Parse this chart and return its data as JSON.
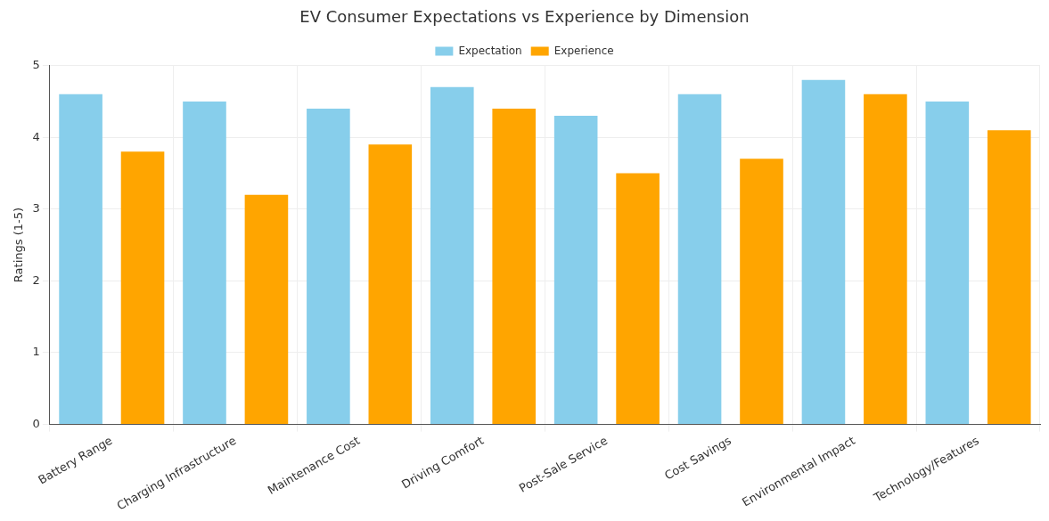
{
  "chart_data": {
    "type": "bar",
    "title": "EV Consumer Expectations vs Experience by Dimension",
    "ylabel": "Ratings (1-5)",
    "categories": [
      "Battery Range",
      "Charging Infrastructure",
      "Maintenance Cost",
      "Driving Comfort",
      "Post-Sale Service",
      "Cost Savings",
      "Environmental Impact",
      "Technology/Features"
    ],
    "series": [
      {
        "name": "Expectation",
        "color": "#87ceeb",
        "values": [
          4.6,
          4.5,
          4.4,
          4.7,
          4.3,
          4.6,
          4.8,
          4.5
        ]
      },
      {
        "name": "Experience",
        "color": "#ffa500",
        "values": [
          3.8,
          3.2,
          3.9,
          4.4,
          3.5,
          3.7,
          4.6,
          4.1
        ]
      }
    ],
    "ylim": [
      0,
      5
    ],
    "yticks": [
      0,
      1,
      2,
      3,
      4,
      5
    ],
    "grid": true,
    "legend": "top"
  }
}
